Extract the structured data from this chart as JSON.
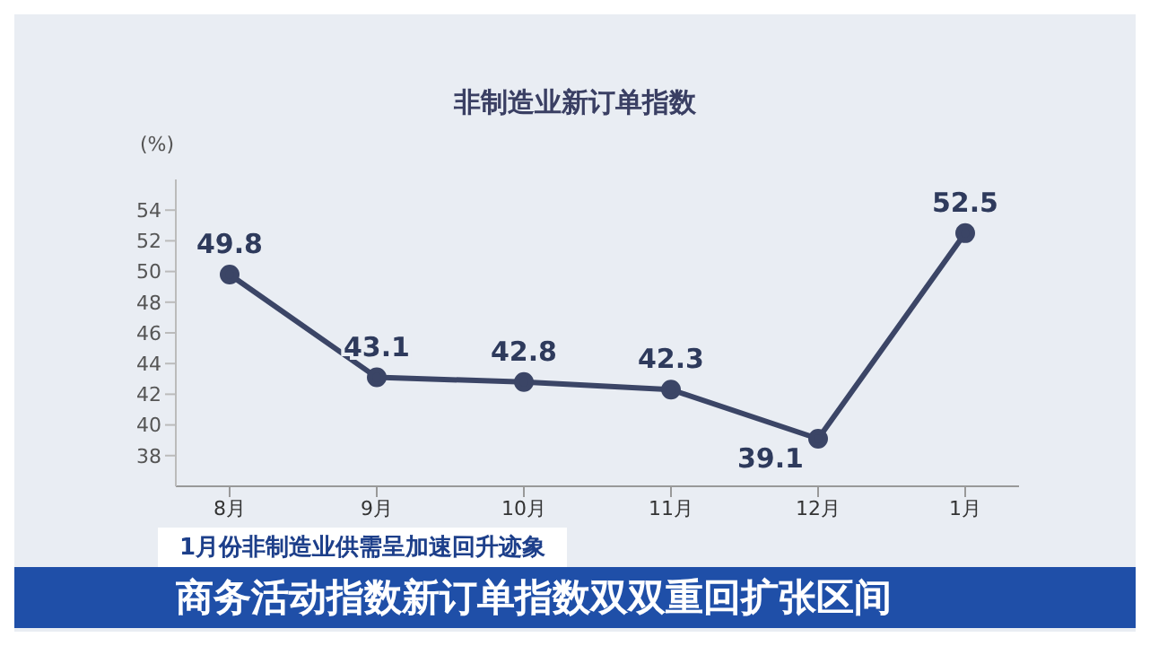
{
  "chart_data": {
    "type": "line",
    "title": "非制造业新订单指数",
    "ylabel": "(%)",
    "categories": [
      "8月",
      "9月",
      "10月",
      "11月",
      "12月",
      "1月"
    ],
    "series": [
      {
        "color": "#3b4566",
        "values": [
          49.8,
          43.1,
          42.8,
          42.3,
          39.1,
          52.5
        ]
      }
    ],
    "ylim": [
      36,
      56
    ],
    "yticks": [
      38,
      40,
      42,
      44,
      46,
      48,
      50,
      52,
      54
    ],
    "grid": false,
    "legend": false,
    "marker": "circle",
    "line_style": "solid",
    "data_labels": true,
    "annotations": [
      "1月份非制造业供需呈加速回升迹象",
      "商务活动指数新订单指数双双重回扩张区间"
    ]
  }
}
